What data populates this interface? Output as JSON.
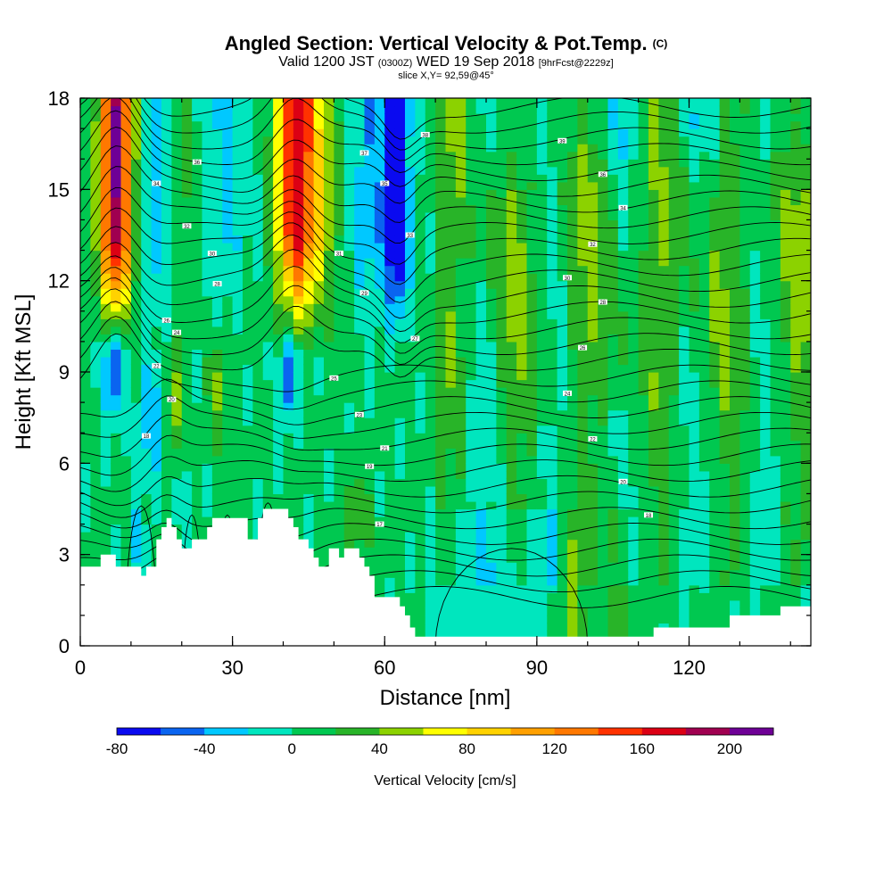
{
  "title": {
    "main": "Angled Section: Vertical Velocity & Pot.Temp.",
    "unit": "(C)"
  },
  "subtitle": {
    "valid": "Valid 1200 JST",
    "utc": "(0300Z)",
    "date": "WED 19 Sep 2018",
    "forecast": "[9hrFcst@2229z]"
  },
  "slice_text": "slice X,Y= 92,59@45°",
  "chart_data": {
    "type": "heatmap",
    "xlabel": "Distance [nm]",
    "ylabel": "Height [Kft MSL]",
    "xlim": [
      0,
      144
    ],
    "ylim": [
      0,
      18
    ],
    "x_ticks": [
      0,
      30,
      60,
      90,
      120
    ],
    "y_ticks": [
      0,
      3,
      6,
      9,
      12,
      15,
      18
    ],
    "colorbar": {
      "label": "Vertical Velocity [cm/s]",
      "bounds": [
        -80,
        220
      ],
      "step": 20,
      "tick_values": [
        -80,
        -40,
        0,
        40,
        80,
        120,
        160,
        200
      ],
      "colors": [
        "#0a0af0",
        "#0a64f0",
        "#00c8ff",
        "#00e6be",
        "#00c850",
        "#28b428",
        "#8cd200",
        "#ffff00",
        "#ffd200",
        "#ffa000",
        "#ff7800",
        "#ff3200",
        "#dc0014",
        "#a00050",
        "#6e0096"
      ]
    },
    "terrain": [
      [
        0,
        2.6
      ],
      [
        4,
        2.6
      ],
      [
        4,
        3.0
      ],
      [
        7,
        3.0
      ],
      [
        7,
        2.6
      ],
      [
        12,
        2.6
      ],
      [
        12,
        2.3
      ],
      [
        13,
        2.3
      ],
      [
        13,
        2.6
      ],
      [
        15,
        2.6
      ],
      [
        15,
        3.5
      ],
      [
        16,
        3.5
      ],
      [
        16,
        3.9
      ],
      [
        17,
        3.9
      ],
      [
        17,
        4.2
      ],
      [
        18,
        4.2
      ],
      [
        18,
        3.9
      ],
      [
        19,
        3.9
      ],
      [
        19,
        3.5
      ],
      [
        20,
        3.5
      ],
      [
        20,
        3.2
      ],
      [
        22,
        3.2
      ],
      [
        22,
        3.5
      ],
      [
        25,
        3.5
      ],
      [
        25,
        3.9
      ],
      [
        26,
        3.9
      ],
      [
        26,
        4.2
      ],
      [
        33,
        4.2
      ],
      [
        33,
        3.5
      ],
      [
        35,
        3.5
      ],
      [
        35,
        4.2
      ],
      [
        36,
        4.2
      ],
      [
        36,
        4.5
      ],
      [
        41,
        4.5
      ],
      [
        41,
        4.2
      ],
      [
        42,
        4.2
      ],
      [
        42,
        3.9
      ],
      [
        43,
        3.9
      ],
      [
        43,
        3.5
      ],
      [
        45,
        3.5
      ],
      [
        45,
        3.2
      ],
      [
        46,
        3.2
      ],
      [
        46,
        2.9
      ],
      [
        47,
        2.9
      ],
      [
        47,
        2.6
      ],
      [
        49,
        2.6
      ],
      [
        49,
        3.2
      ],
      [
        51,
        3.2
      ],
      [
        51,
        2.9
      ],
      [
        52,
        2.9
      ],
      [
        52,
        3.2
      ],
      [
        55,
        3.2
      ],
      [
        55,
        2.9
      ],
      [
        56,
        2.9
      ],
      [
        56,
        2.6
      ],
      [
        57,
        2.6
      ],
      [
        57,
        2.3
      ],
      [
        58,
        2.3
      ],
      [
        58,
        1.6
      ],
      [
        63,
        1.6
      ],
      [
        63,
        1.3
      ],
      [
        64,
        1.3
      ],
      [
        64,
        1.0
      ],
      [
        65,
        1.0
      ],
      [
        65,
        0.6
      ],
      [
        66,
        0.6
      ],
      [
        66,
        0.3
      ],
      [
        113,
        0.3
      ],
      [
        113,
        0.6
      ],
      [
        128,
        0.6
      ],
      [
        128,
        1.0
      ],
      [
        138,
        1.0
      ],
      [
        138,
        1.3
      ],
      [
        144,
        1.3
      ]
    ],
    "theta_labels": [
      {
        "x": 15,
        "y": 15.2,
        "text": "34"
      },
      {
        "x": 21,
        "y": 13.8,
        "text": "32"
      },
      {
        "x": 26,
        "y": 12.9,
        "text": "30"
      },
      {
        "x": 27,
        "y": 11.9,
        "text": "28"
      },
      {
        "x": 17,
        "y": 10.7,
        "text": "26"
      },
      {
        "x": 19,
        "y": 10.3,
        "text": "24"
      },
      {
        "x": 15,
        "y": 9.2,
        "text": "22"
      },
      {
        "x": 18,
        "y": 8.1,
        "text": "20"
      },
      {
        "x": 13,
        "y": 6.9,
        "text": "18"
      },
      {
        "x": 23,
        "y": 15.9,
        "text": "36"
      },
      {
        "x": 56,
        "y": 16.2,
        "text": "37"
      },
      {
        "x": 60,
        "y": 15.2,
        "text": "35"
      },
      {
        "x": 65,
        "y": 13.5,
        "text": "33"
      },
      {
        "x": 51,
        "y": 12.9,
        "text": "31"
      },
      {
        "x": 56,
        "y": 11.6,
        "text": "29"
      },
      {
        "x": 66,
        "y": 10.1,
        "text": "27"
      },
      {
        "x": 50,
        "y": 8.8,
        "text": "25"
      },
      {
        "x": 55,
        "y": 7.6,
        "text": "23"
      },
      {
        "x": 60,
        "y": 6.5,
        "text": "21"
      },
      {
        "x": 57,
        "y": 5.9,
        "text": "19"
      },
      {
        "x": 59,
        "y": 4.0,
        "text": "17"
      },
      {
        "x": 68,
        "y": 16.8,
        "text": "38"
      },
      {
        "x": 95,
        "y": 16.6,
        "text": "39"
      },
      {
        "x": 103,
        "y": 15.5,
        "text": "36"
      },
      {
        "x": 107,
        "y": 14.4,
        "text": "34"
      },
      {
        "x": 101,
        "y": 13.2,
        "text": "32"
      },
      {
        "x": 96,
        "y": 12.1,
        "text": "30"
      },
      {
        "x": 103,
        "y": 11.3,
        "text": "28"
      },
      {
        "x": 99,
        "y": 9.8,
        "text": "26"
      },
      {
        "x": 96,
        "y": 8.3,
        "text": "24"
      },
      {
        "x": 101,
        "y": 6.8,
        "text": "22"
      },
      {
        "x": 107,
        "y": 5.4,
        "text": "20"
      },
      {
        "x": 112,
        "y": 4.3,
        "text": "18"
      }
    ]
  }
}
